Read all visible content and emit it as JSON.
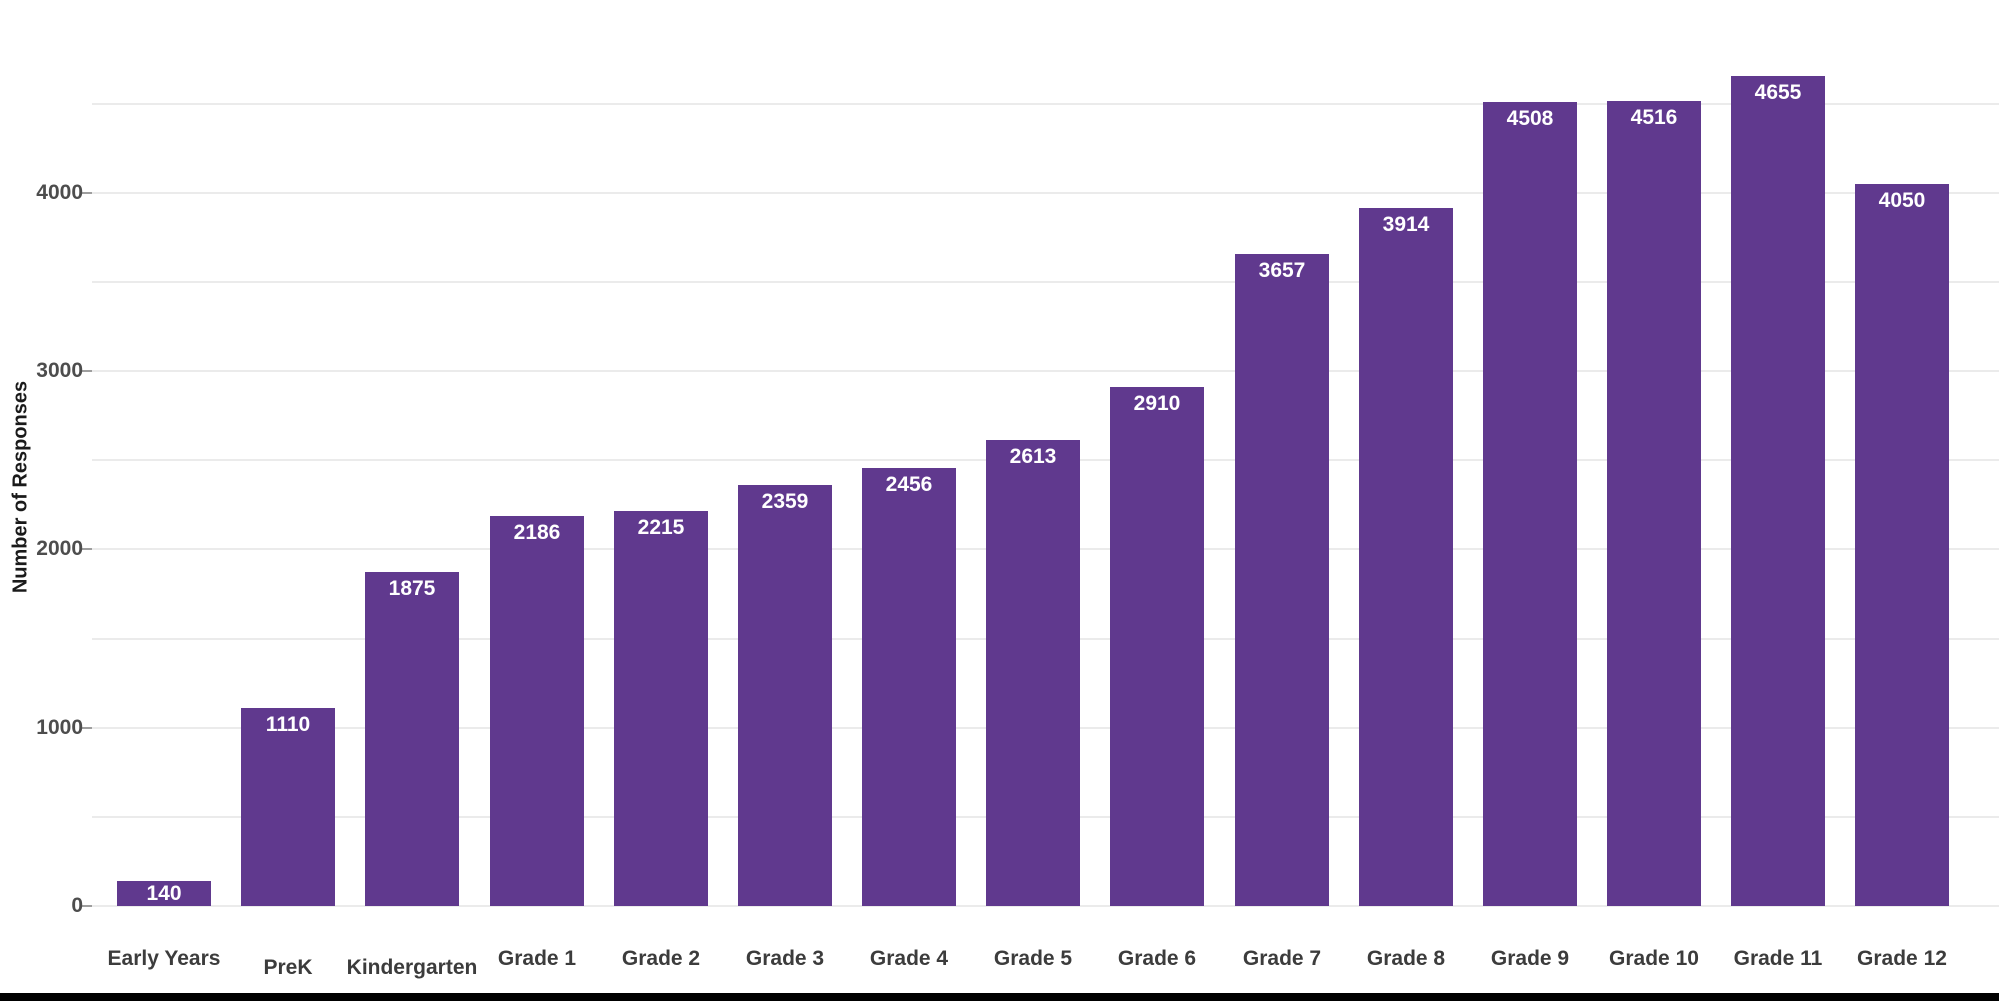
{
  "chart_data": {
    "type": "bar",
    "title": "",
    "xlabel": "",
    "ylabel": "Number of Responses",
    "categories": [
      "Early Years",
      "PreK",
      "Kindergarten",
      "Grade 1",
      "Grade 2",
      "Grade 3",
      "Grade 4",
      "Grade 5",
      "Grade 6",
      "Grade 7",
      "Grade 8",
      "Grade 9",
      "Grade 10",
      "Grade 11",
      "Grade 12"
    ],
    "values": [
      140,
      1110,
      1875,
      2186,
      2215,
      2359,
      2456,
      2613,
      2910,
      3657,
      3914,
      4508,
      4516,
      4655,
      4050
    ],
    "ylim": [
      0,
      5080
    ],
    "yticks": [
      0,
      1000,
      2000,
      3000,
      4000
    ],
    "minor_gridline_step": 500,
    "gridline_max": 4500,
    "grid": "on",
    "legend": "none",
    "colors": {
      "bar": "#60398E",
      "value_label": "#FFFFFF",
      "gridline": "#EBEBEB",
      "tick_dash": "#9E9E9E",
      "ytick_label": "#4D4D4D",
      "category_label": "#3C3C3C",
      "ylabel": "#1A1A1A",
      "footer_bar": "#000000",
      "background": "#FFFFFF"
    }
  }
}
